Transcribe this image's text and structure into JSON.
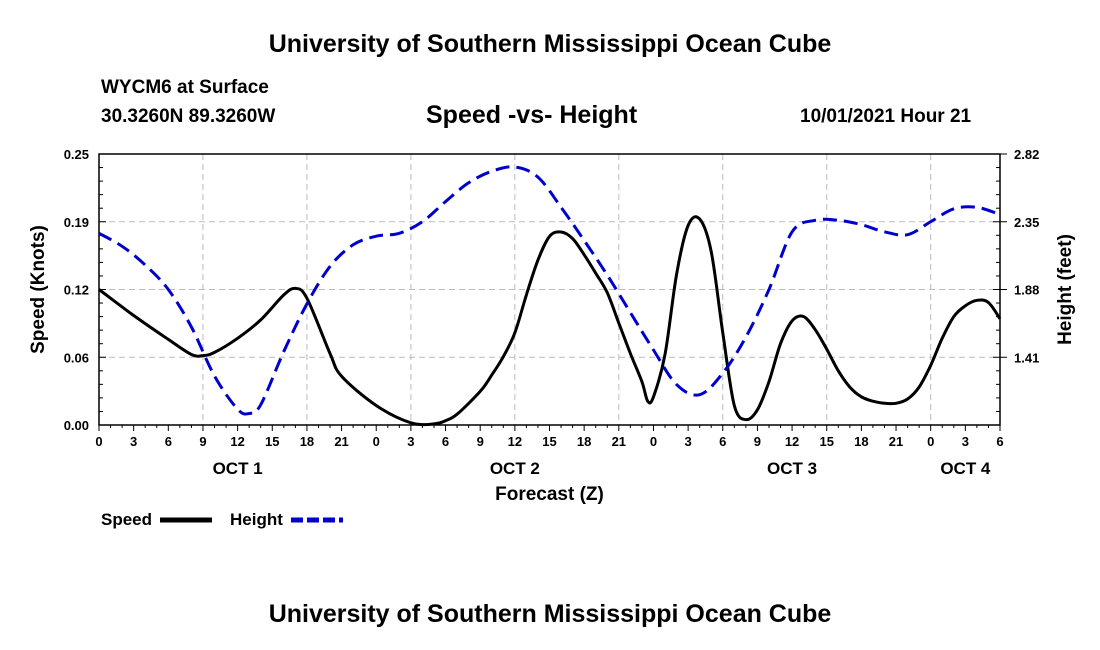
{
  "header": {
    "title": "University of Southern Mississippi Ocean Cube",
    "station": "WYCM6 at Surface",
    "coords": "30.3260N  89.3260W",
    "subtitle": "Speed -vs- Height",
    "datetime": "10/01/2021 Hour 21"
  },
  "footer": {
    "title": "University of Southern Mississippi Ocean Cube"
  },
  "chart_data": {
    "type": "line",
    "title": "Speed -vs- Height",
    "xlabel": "Forecast (Z)",
    "ylabel": "Speed (Knots)",
    "y2label": "Height (feet)",
    "x_range_hours": [
      0,
      78
    ],
    "ylim": [
      0,
      0.25
    ],
    "y2lim": [
      0.94,
      2.82
    ],
    "y_ticks": [
      "0.00",
      "0.06",
      "0.12",
      "0.19",
      "0.25"
    ],
    "y2_ticks": [
      "1.41",
      "1.88",
      "2.35",
      "2.82"
    ],
    "y2_tick_values": [
      1.41,
      1.88,
      2.35,
      2.82
    ],
    "x_tick_labels": [
      "0",
      "3",
      "6",
      "9",
      "12",
      "15",
      "18",
      "21",
      "0",
      "3",
      "6",
      "9",
      "12",
      "15",
      "18",
      "21",
      "0",
      "3",
      "6",
      "9",
      "12",
      "15",
      "18",
      "21",
      "0",
      "3",
      "6"
    ],
    "date_labels": [
      {
        "label": "OCT 1",
        "hour": 12
      },
      {
        "label": "OCT 2",
        "hour": 36
      },
      {
        "label": "OCT 3",
        "hour": 60
      },
      {
        "label": "OCT 4",
        "hour": 75
      }
    ],
    "grid": true,
    "series": [
      {
        "name": "Speed",
        "axis": "left",
        "color": "#000000",
        "style": "solid",
        "x": [
          0,
          3,
          6,
          8,
          9,
          10,
          12,
          14,
          16,
          17,
          18,
          20,
          21,
          24,
          27,
          29,
          30,
          31,
          33,
          34,
          35,
          36,
          37,
          38,
          39,
          40,
          41,
          42,
          43,
          44,
          45,
          46,
          47,
          47.5,
          48,
          49,
          50,
          51,
          52,
          53,
          54,
          55,
          56,
          57,
          58,
          59,
          60,
          61,
          62,
          63,
          64,
          65,
          66,
          67,
          68,
          69,
          70,
          71,
          72,
          73,
          74,
          75,
          76,
          77,
          78
        ],
        "values": [
          0.125,
          0.101,
          0.079,
          0.065,
          0.064,
          0.067,
          0.08,
          0.097,
          0.12,
          0.126,
          0.117,
          0.066,
          0.045,
          0.018,
          0.002,
          0.001,
          0.004,
          0.01,
          0.031,
          0.046,
          0.063,
          0.085,
          0.12,
          0.152,
          0.174,
          0.178,
          0.172,
          0.157,
          0.14,
          0.122,
          0.094,
          0.066,
          0.04,
          0.022,
          0.026,
          0.065,
          0.139,
          0.184,
          0.19,
          0.16,
          0.085,
          0.018,
          0.005,
          0.014,
          0.04,
          0.075,
          0.096,
          0.1,
          0.088,
          0.07,
          0.05,
          0.035,
          0.026,
          0.022,
          0.02,
          0.02,
          0.024,
          0.035,
          0.055,
          0.08,
          0.1,
          0.11,
          0.115,
          0.113,
          0.098
        ]
      },
      {
        "name": "Height",
        "axis": "right",
        "color": "#0000cc",
        "style": "dashed",
        "x": [
          0,
          2,
          4,
          6,
          8,
          10,
          12,
          13,
          14,
          16,
          18,
          20,
          22,
          24,
          26,
          28,
          30,
          32,
          34,
          36,
          38,
          40,
          42,
          44,
          46,
          48,
          50,
          52,
          54,
          56,
          58,
          60,
          62,
          64,
          66,
          68,
          70,
          72,
          74,
          76,
          78
        ],
        "values": [
          2.27,
          2.18,
          2.05,
          1.88,
          1.62,
          1.28,
          1.05,
          1.02,
          1.08,
          1.45,
          1.78,
          2.04,
          2.19,
          2.25,
          2.27,
          2.35,
          2.49,
          2.62,
          2.7,
          2.73,
          2.66,
          2.45,
          2.22,
          1.98,
          1.72,
          1.46,
          1.22,
          1.15,
          1.3,
          1.55,
          1.88,
          2.28,
          2.36,
          2.36,
          2.33,
          2.28,
          2.26,
          2.35,
          2.44,
          2.45,
          2.4
        ]
      }
    ],
    "legend": [
      {
        "label": "Speed",
        "color": "#000000",
        "style": "solid"
      },
      {
        "label": "Height",
        "color": "#0000cc",
        "style": "dashed"
      }
    ]
  }
}
